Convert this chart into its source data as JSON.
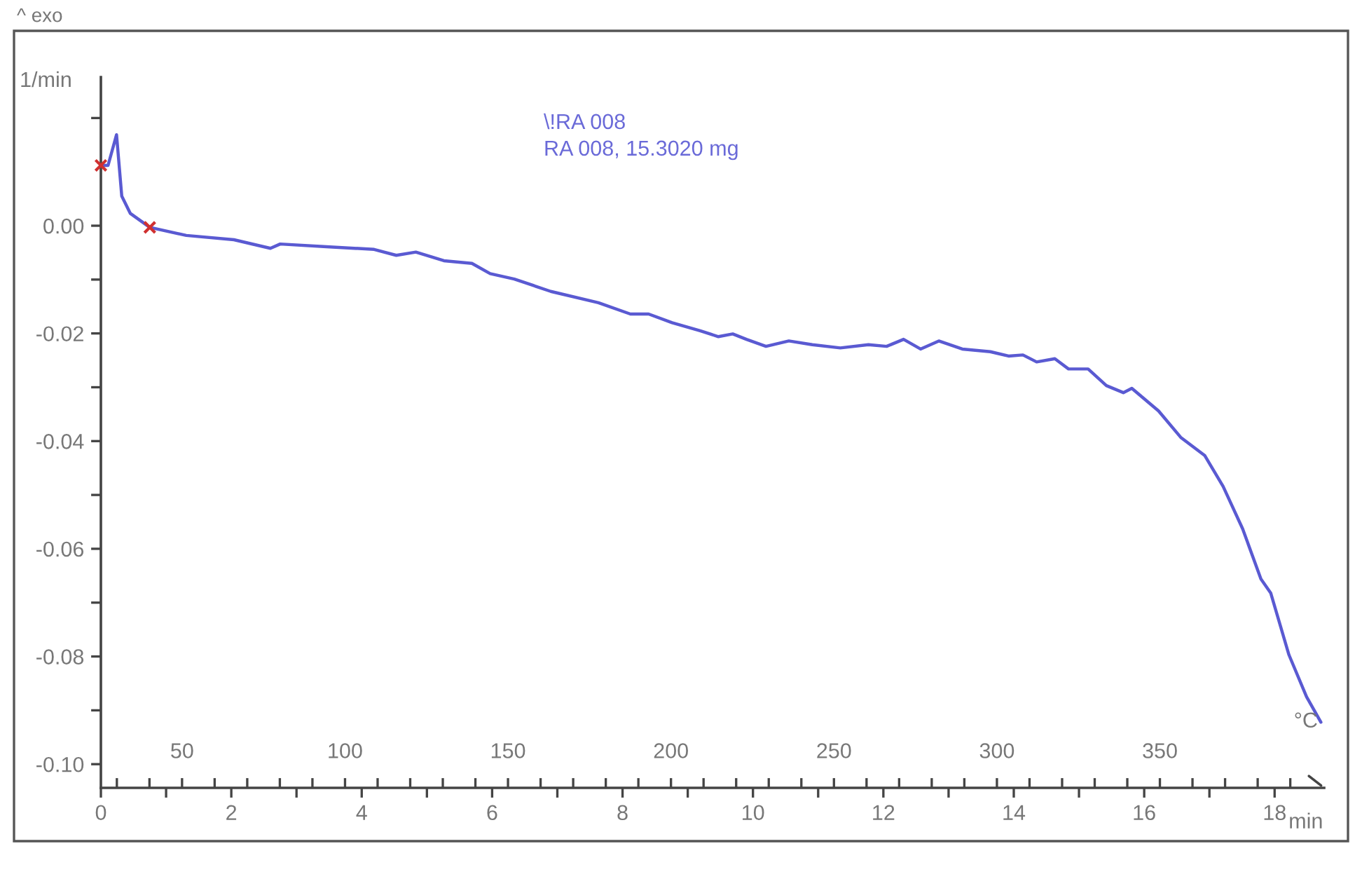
{
  "chart_data": {
    "type": "line",
    "xlabel": "min",
    "x2label": "°C",
    "ylabel": "1/min",
    "annotations": [
      "^ exo",
      "\\!RA 008",
      "RA 008, 15.3020 mg"
    ],
    "xlim": [
      0,
      18.76
    ],
    "xticks": [
      0,
      {
        "value": 1,
        "label": null
      },
      2,
      {
        "value": 3,
        "label": null
      },
      4,
      {
        "value": 5,
        "label": null
      },
      6,
      {
        "value": 7,
        "label": null
      },
      8,
      {
        "value": 9,
        "label": null
      },
      10,
      {
        "value": 11,
        "label": null
      },
      12,
      {
        "value": 13,
        "label": null
      },
      14,
      {
        "value": 15,
        "label": null
      },
      16,
      {
        "value": 17,
        "label": null
      },
      18
    ],
    "x2lim": [
      25.1,
      400.4
    ],
    "x2ticks": [
      {
        "value": 30,
        "label": null
      },
      {
        "value": 40,
        "label": null
      },
      50,
      {
        "value": 60,
        "label": null
      },
      {
        "value": 70,
        "label": null
      },
      {
        "value": 80,
        "label": null
      },
      {
        "value": 90,
        "label": null
      },
      100,
      {
        "value": 110,
        "label": null
      },
      {
        "value": 120,
        "label": null
      },
      {
        "value": 130,
        "label": null
      },
      {
        "value": 140,
        "label": null
      },
      150,
      {
        "value": 160,
        "label": null
      },
      {
        "value": 170,
        "label": null
      },
      {
        "value": 180,
        "label": null
      },
      {
        "value": 190,
        "label": null
      },
      200,
      {
        "value": 210,
        "label": null
      },
      {
        "value": 220,
        "label": null
      },
      {
        "value": 230,
        "label": null
      },
      {
        "value": 240,
        "label": null
      },
      250,
      {
        "value": 260,
        "label": null
      },
      {
        "value": 270,
        "label": null
      },
      {
        "value": 280,
        "label": null
      },
      {
        "value": 290,
        "label": null
      },
      300,
      {
        "value": 310,
        "label": null
      },
      {
        "value": 320,
        "label": null
      },
      {
        "value": 330,
        "label": null
      },
      {
        "value": 340,
        "label": null
      },
      350,
      {
        "value": 360,
        "label": null
      },
      {
        "value": 370,
        "label": null
      },
      {
        "value": 380,
        "label": null
      },
      {
        "value": 390,
        "label": null
      }
    ],
    "ylim": [
      -0.1044,
      0.0276
    ],
    "yticks": [
      {
        "value": 0.02,
        "label": null
      },
      {
        "value": 0.0,
        "label": "0.00"
      },
      {
        "value": -0.01,
        "label": null
      },
      {
        "value": -0.02,
        "label": "-0.02"
      },
      {
        "value": -0.03,
        "label": null
      },
      {
        "value": -0.04,
        "label": "-0.04"
      },
      {
        "value": -0.05,
        "label": null
      },
      {
        "value": -0.06,
        "label": "-0.06"
      },
      {
        "value": -0.07,
        "label": null
      },
      {
        "value": -0.08,
        "label": "-0.08"
      },
      {
        "value": -0.09,
        "label": null
      },
      {
        "value": -0.1,
        "label": "-0.10"
      }
    ],
    "grid": false,
    "series": [
      {
        "color": "#5a5ad2",
        "marker": "none",
        "line_style": "solid",
        "x": [
          0.0,
          0.11,
          0.24,
          0.32,
          0.45,
          0.75,
          1.31,
          2.04,
          2.6,
          2.75,
          3.46,
          4.19,
          4.53,
          4.83,
          5.26,
          5.69,
          5.97,
          6.34,
          6.9,
          7.63,
          8.12,
          8.4,
          8.76,
          9.19,
          9.47,
          9.69,
          9.9,
          10.2,
          10.55,
          10.91,
          11.34,
          11.77,
          12.05,
          12.31,
          12.57,
          12.85,
          13.21,
          13.64,
          13.92,
          14.14,
          14.35,
          14.63,
          14.84,
          15.14,
          15.42,
          15.68,
          15.81,
          16.22,
          16.56,
          16.93,
          17.21,
          17.51,
          17.79,
          17.94,
          18.22,
          18.49,
          18.71
        ],
        "values": [
          0.0112,
          0.0112,
          0.0169,
          0.0055,
          0.0023,
          -0.0003,
          -0.0018,
          -0.0026,
          -0.0042,
          -0.0034,
          -0.0039,
          -0.0044,
          -0.0055,
          -0.0049,
          -0.0065,
          -0.007,
          -0.0089,
          -0.0099,
          -0.0122,
          -0.0143,
          -0.0164,
          -0.0164,
          -0.018,
          -0.0195,
          -0.0206,
          -0.0201,
          -0.0211,
          -0.0224,
          -0.0214,
          -0.0221,
          -0.0227,
          -0.0221,
          -0.0224,
          -0.0211,
          -0.0229,
          -0.0214,
          -0.0229,
          -0.0234,
          -0.0242,
          -0.024,
          -0.0253,
          -0.0247,
          -0.0266,
          -0.0266,
          -0.0297,
          -0.031,
          -0.0302,
          -0.0344,
          -0.0393,
          -0.0427,
          -0.0484,
          -0.0563,
          -0.0656,
          -0.0682,
          -0.0797,
          -0.0875,
          -0.0922
        ]
      },
      {
        "type": "scatter",
        "color": "#d03030",
        "marker": "cross",
        "x": [
          0.0,
          0.75
        ],
        "values": [
          0.0112,
          -0.0003
        ]
      }
    ]
  }
}
